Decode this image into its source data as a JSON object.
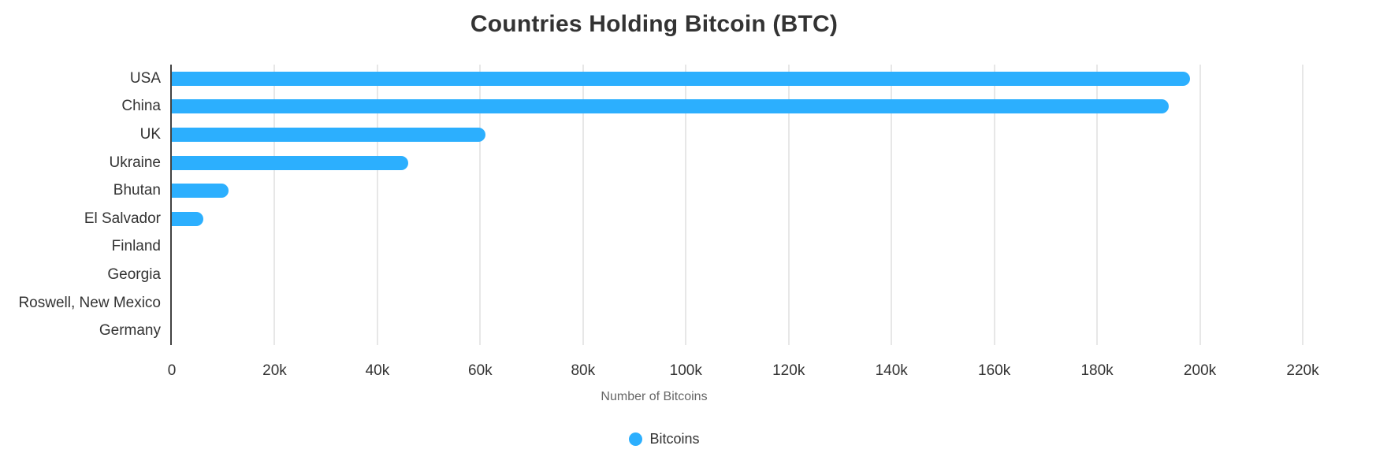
{
  "chart_data": {
    "type": "bar",
    "orientation": "horizontal",
    "title": "Countries Holding Bitcoin (BTC)",
    "categories": [
      "USA",
      "China",
      "UK",
      "Ukraine",
      "Bhutan",
      "El Salvador",
      "Finland",
      "Georgia",
      "Roswell, New Mexico",
      "Germany"
    ],
    "series": [
      {
        "name": "Bitcoins",
        "color": "#2CAFFE",
        "values": [
          198000,
          194000,
          61000,
          46000,
          11000,
          6100,
          0,
          0,
          0,
          0
        ]
      }
    ],
    "xlabel": "Number of Bitcoins",
    "ylabel": "",
    "xlim": [
      0,
      220000
    ],
    "x_ticks": {
      "values": [
        0,
        20000,
        40000,
        60000,
        80000,
        100000,
        120000,
        140000,
        160000,
        180000,
        200000,
        220000
      ],
      "labels": [
        "0",
        "20k",
        "40k",
        "60k",
        "80k",
        "100k",
        "120k",
        "140k",
        "160k",
        "180k",
        "200k",
        "220k"
      ]
    },
    "grid": "vertical-gridlines",
    "legend": {
      "position": "bottom",
      "items": [
        {
          "label": "Bitcoins",
          "color": "#2CAFFE"
        }
      ]
    },
    "colors": {
      "bar": "#2CAFFE",
      "axis_line": "#424242",
      "gridline": "#e7e7e7",
      "text": "#333333",
      "muted_text": "#666666",
      "background": "#ffffff"
    }
  }
}
